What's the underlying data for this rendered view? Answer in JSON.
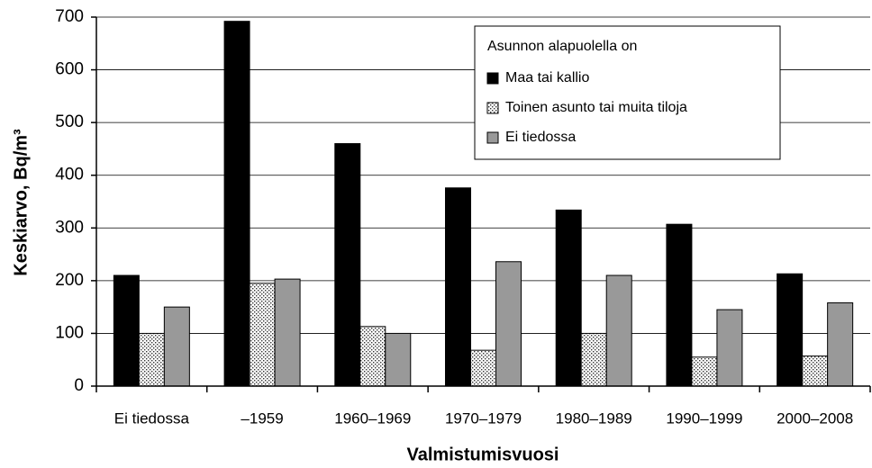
{
  "chart_data": {
    "type": "bar",
    "categories": [
      "Ei tiedossa",
      "–1959",
      "1960–1969",
      "1970–1979",
      "1980–1989",
      "1990–1999",
      "2000–2008"
    ],
    "series": [
      {
        "name": "Maa tai kallio",
        "color": "#000000",
        "values": [
          210,
          692,
          460,
          376,
          334,
          307,
          213
        ]
      },
      {
        "name": "Toinen asunto tai muita tiloja",
        "color": "#ffffff",
        "pattern": "dots",
        "values": [
          100,
          195,
          113,
          68,
          100,
          55,
          57
        ]
      },
      {
        "name": "Ei tiedossa",
        "color": "#999999",
        "values": [
          150,
          203,
          100,
          236,
          210,
          145,
          158
        ]
      }
    ],
    "legend_title": "Asunnon alapuolella on",
    "xlabel": "Valmistumisvuosi",
    "ylabel": "Keskiarvo, Bq/m³",
    "ylim": [
      0,
      700
    ],
    "yticks": [
      0,
      100,
      200,
      300,
      400,
      500,
      600,
      700
    ],
    "grid": true,
    "legend": "upper right"
  }
}
